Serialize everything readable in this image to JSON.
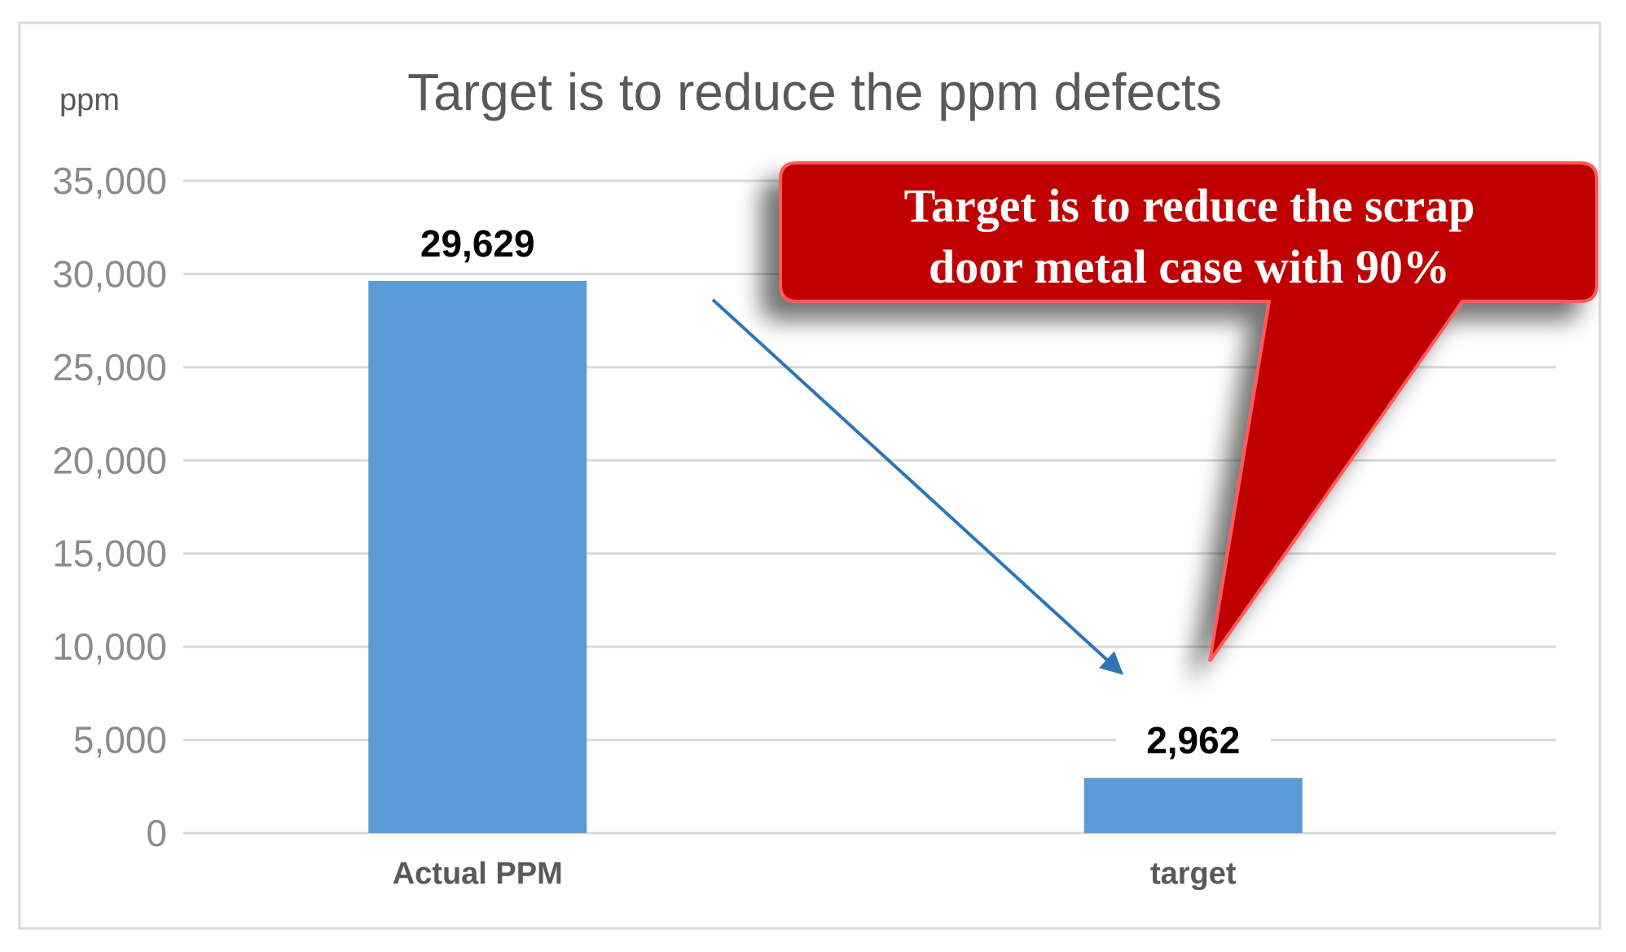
{
  "colors": {
    "bar": "#5b9bd5",
    "arrow": "#2e75b6",
    "callout_fill": "#c00000",
    "callout_border": "#ff5a5a"
  },
  "chart_data": {
    "type": "bar",
    "title": "Target is to reduce the ppm defects",
    "ylabel": "ppm",
    "xlabel": "",
    "categories": [
      "Actual PPM",
      "target"
    ],
    "values": [
      29629,
      2962
    ],
    "data_labels": [
      "29,629",
      "2,962"
    ],
    "ylim": [
      0,
      35000
    ],
    "yticks": [
      0,
      5000,
      10000,
      15000,
      20000,
      25000,
      30000,
      35000
    ],
    "ytick_labels": [
      "0",
      "5,000",
      "10,000",
      "15,000",
      "20,000",
      "25,000",
      "30,000",
      "35,000"
    ],
    "grid": true,
    "legend": "none",
    "annotations": {
      "arrow": "from Actual PPM bar down to target bar",
      "callout_lines": [
        "Target is to reduce the scrap",
        "door metal case with 90%"
      ]
    }
  }
}
